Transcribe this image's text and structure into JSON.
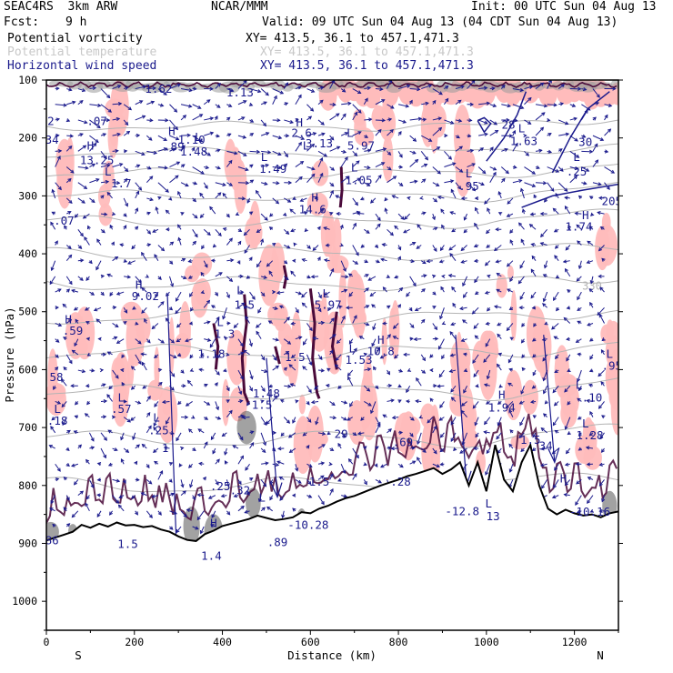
{
  "header": {
    "model": "SEAC4RS  3km ARW",
    "org": "NCAR/MMM",
    "init": "Init: 00 UTC Sun 04 Aug 13",
    "fcst_label": "Fcst:",
    "fcst_value": "9 h",
    "valid": "Valid: 09 UTC Sun 04 Aug 13 (04 CDT Sun 04 Aug 13)"
  },
  "fields": [
    {
      "name": "Potential vorticity",
      "xy": "XY= 413.5, 36.1 to 457.1,471.3",
      "color": "#000000"
    },
    {
      "name": "Potential temperature",
      "xy": "XY= 413.5, 36.1 to 457.1,471.3",
      "color": "#c8c8c8"
    },
    {
      "name": "Horizontal wind speed",
      "xy": "XY= 413.5, 36.1 to 457.1,471.3",
      "color": "#1a1a8c"
    }
  ],
  "colors": {
    "pv_fill": "#ffbcbc",
    "pv_contour": "#4a0a3a",
    "theta": "#b4b4b4",
    "wind": "#1a1a8c",
    "terrain": "#000000",
    "cloud_grey": "#9a9a9a"
  },
  "chart_data": {
    "type": "cross-section",
    "xlabel": "Distance (km)",
    "ylabel": "Pressure (hPa)",
    "xlim": [
      0,
      1300
    ],
    "ylim": [
      100,
      1050
    ],
    "x_ticks": [
      0,
      200,
      400,
      600,
      800,
      1000,
      1200
    ],
    "y_ticks": [
      100,
      200,
      300,
      400,
      500,
      600,
      700,
      800,
      900,
      1000
    ],
    "endpoints": {
      "left": "S",
      "right": "N"
    },
    "terrain": {
      "x": [
        0,
        20,
        40,
        60,
        80,
        100,
        120,
        140,
        160,
        180,
        200,
        220,
        240,
        260,
        280,
        300,
        320,
        340,
        360,
        380,
        400,
        420,
        440,
        460,
        480,
        500,
        520,
        540,
        560,
        580,
        600,
        620,
        640,
        660,
        680,
        700,
        720,
        740,
        760,
        780,
        800,
        820,
        840,
        860,
        880,
        900,
        920,
        940,
        960,
        980,
        1000,
        1020,
        1040,
        1060,
        1080,
        1100,
        1120,
        1140,
        1160,
        1180,
        1200,
        1220,
        1240,
        1260,
        1280,
        1300
      ],
      "p": [
        895,
        890,
        885,
        880,
        868,
        873,
        866,
        871,
        864,
        869,
        868,
        872,
        870,
        876,
        880,
        888,
        894,
        896,
        884,
        878,
        870,
        866,
        862,
        858,
        852,
        856,
        860,
        858,
        855,
        846,
        848,
        840,
        835,
        828,
        822,
        818,
        812,
        806,
        800,
        795,
        790,
        784,
        780,
        775,
        770,
        780,
        772,
        760,
        800,
        760,
        810,
        730,
        790,
        810,
        760,
        730,
        800,
        840,
        850,
        842,
        848,
        852,
        850,
        855,
        848,
        845
      ]
    },
    "theta_contour_labels": [
      {
        "x": 1240,
        "p": 462,
        "label": "330"
      }
    ],
    "pv_labels": [
      {
        "x": 255,
        "p": 122,
        "label": "1.62"
      },
      {
        "x": 440,
        "p": 128,
        "label": "1.13"
      },
      {
        "x": 10,
        "p": 178,
        "label": "2"
      },
      {
        "x": 115,
        "p": 178,
        "label": ".07"
      },
      {
        "x": 5,
        "p": 210,
        "label": ".34"
      },
      {
        "x": 290,
        "p": 222,
        "label": ".89"
      },
      {
        "x": 330,
        "p": 210,
        "label": "1.10"
      },
      {
        "x": 580,
        "p": 198,
        "label": "2.6"
      },
      {
        "x": 620,
        "p": 216,
        "label": "3.13"
      },
      {
        "x": 715,
        "p": 220,
        "label": "5.97"
      },
      {
        "x": 1050,
        "p": 184,
        "label": "28"
      },
      {
        "x": 1085,
        "p": 212,
        "label": "1.63"
      },
      {
        "x": 1225,
        "p": 214,
        "label": "30"
      },
      {
        "x": 115,
        "p": 245,
        "label": "13.25"
      },
      {
        "x": 335,
        "p": 230,
        "label": "1.48"
      },
      {
        "x": 515,
        "p": 260,
        "label": "1.49"
      },
      {
        "x": 170,
        "p": 285,
        "label": "1.7"
      },
      {
        "x": 710,
        "p": 280,
        "label": "1.05"
      },
      {
        "x": 960,
        "p": 290,
        "label": ".95"
      },
      {
        "x": 1205,
        "p": 265,
        "label": ".25"
      },
      {
        "x": 1285,
        "p": 316,
        "label": "205"
      },
      {
        "x": 605,
        "p": 330,
        "label": "14.6"
      },
      {
        "x": 40,
        "p": 350,
        "label": ".07"
      },
      {
        "x": 1210,
        "p": 360,
        "label": "1.74"
      },
      {
        "x": 225,
        "p": 480,
        "label": "9.02"
      },
      {
        "x": 450,
        "p": 495,
        "label": "1.5"
      },
      {
        "x": 640,
        "p": 495,
        "label": "5.97"
      },
      {
        "x": 60,
        "p": 540,
        "label": ".59"
      },
      {
        "x": 405,
        "p": 545,
        "label": "1.3"
      },
      {
        "x": 375,
        "p": 580,
        "label": "1.18"
      },
      {
        "x": 565,
        "p": 585,
        "label": "1.5"
      },
      {
        "x": 760,
        "p": 575,
        "label": "10.8"
      },
      {
        "x": 710,
        "p": 590,
        "label": "1.53"
      },
      {
        "x": 1285,
        "p": 600,
        "label": ".95"
      },
      {
        "x": 15,
        "p": 620,
        "label": ".58"
      },
      {
        "x": 1240,
        "p": 655,
        "label": ".10"
      },
      {
        "x": 500,
        "p": 648,
        "label": "1.48"
      },
      {
        "x": 490,
        "p": 668,
        "label": "1.5"
      },
      {
        "x": 170,
        "p": 675,
        "label": ".57"
      },
      {
        "x": 1035,
        "p": 672,
        "label": "1.94"
      },
      {
        "x": 25,
        "p": 695,
        "label": ".18"
      },
      {
        "x": 255,
        "p": 712,
        "label": ".25"
      },
      {
        "x": 1235,
        "p": 720,
        "label": "1.28"
      },
      {
        "x": 670,
        "p": 718,
        "label": "29"
      },
      {
        "x": 810,
        "p": 732,
        "label": ".69"
      },
      {
        "x": 270,
        "p": 742,
        "label": "1"
      },
      {
        "x": 1100,
        "p": 728,
        "label": "1.5"
      },
      {
        "x": 1135,
        "p": 738,
        "label": "34"
      },
      {
        "x": 395,
        "p": 808,
        "label": ".25"
      },
      {
        "x": 440,
        "p": 815,
        "label": ".32"
      },
      {
        "x": 620,
        "p": 800,
        "label": "1.5"
      },
      {
        "x": 805,
        "p": 800,
        "label": ".28"
      },
      {
        "x": 945,
        "p": 851,
        "label": "-12.8"
      },
      {
        "x": 1015,
        "p": 860,
        "label": "13"
      },
      {
        "x": 1235,
        "p": 852,
        "label": "-10.16"
      },
      {
        "x": 595,
        "p": 875,
        "label": "-10.28"
      },
      {
        "x": 5,
        "p": 902,
        "label": ".86"
      },
      {
        "x": 185,
        "p": 908,
        "label": "1.5"
      },
      {
        "x": 375,
        "p": 928,
        "label": "1.4"
      },
      {
        "x": 525,
        "p": 905,
        "label": ".89"
      }
    ],
    "extrema": [
      {
        "x": 285,
        "p": 195,
        "type": "H"
      },
      {
        "x": 345,
        "p": 205,
        "type": "L"
      },
      {
        "x": 100,
        "p": 220,
        "type": "H"
      },
      {
        "x": 575,
        "p": 180,
        "type": "H"
      },
      {
        "x": 690,
        "p": 198,
        "type": "L"
      },
      {
        "x": 1080,
        "p": 190,
        "type": "L"
      },
      {
        "x": 590,
        "p": 220,
        "type": "L"
      },
      {
        "x": 140,
        "p": 265,
        "type": "L"
      },
      {
        "x": 495,
        "p": 240,
        "type": "L"
      },
      {
        "x": 700,
        "p": 258,
        "type": "L"
      },
      {
        "x": 960,
        "p": 268,
        "type": "L"
      },
      {
        "x": 1205,
        "p": 240,
        "type": "L"
      },
      {
        "x": 610,
        "p": 310,
        "type": "H"
      },
      {
        "x": 1225,
        "p": 340,
        "type": "H"
      },
      {
        "x": 210,
        "p": 460,
        "type": "H"
      },
      {
        "x": 440,
        "p": 470,
        "type": "L"
      },
      {
        "x": 635,
        "p": 475,
        "type": "L"
      },
      {
        "x": 50,
        "p": 520,
        "type": "H"
      },
      {
        "x": 395,
        "p": 525,
        "type": "L"
      },
      {
        "x": 760,
        "p": 555,
        "type": "H"
      },
      {
        "x": 695,
        "p": 570,
        "type": "L"
      },
      {
        "x": 1280,
        "p": 580,
        "type": "L"
      },
      {
        "x": 1210,
        "p": 633,
        "type": "L"
      },
      {
        "x": 170,
        "p": 655,
        "type": "L"
      },
      {
        "x": 1035,
        "p": 650,
        "type": "H"
      },
      {
        "x": 25,
        "p": 675,
        "type": "L"
      },
      {
        "x": 250,
        "p": 690,
        "type": "L"
      },
      {
        "x": 1225,
        "p": 700,
        "type": "L"
      },
      {
        "x": 1175,
        "p": 795,
        "type": "H"
      },
      {
        "x": 490,
        "p": 828,
        "type": "L"
      },
      {
        "x": 380,
        "p": 872,
        "type": "H"
      },
      {
        "x": 1005,
        "p": 838,
        "type": "L"
      }
    ]
  }
}
